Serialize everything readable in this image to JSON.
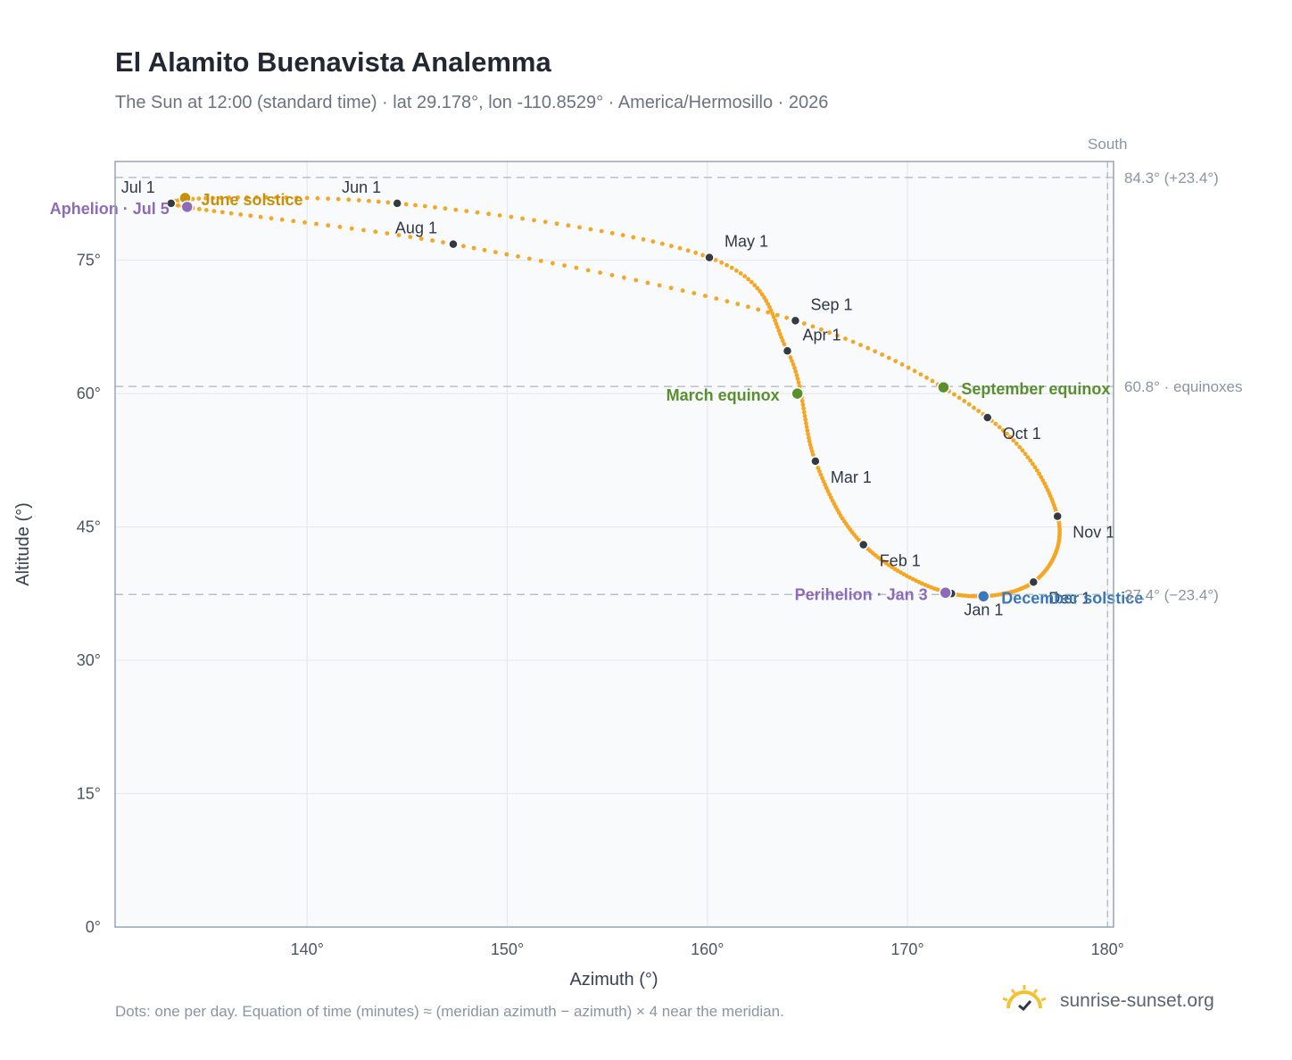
{
  "header": {
    "title": "El Alamito Buenavista Analemma",
    "subtitle": "The Sun at 12:00 (standard time) · lat 29.178°, lon -110.8529° · America/Hermosillo · 2026"
  },
  "footer": {
    "note": "Dots: one per day. Equation of time (minutes) ≈ (meridian azimuth − azimuth) × 4 near the meridian.",
    "brand": "sunrise-sunset.org",
    "brand_icon": "sun-icon"
  },
  "colors": {
    "curve": "#f5a623",
    "month_marker": "#333a44",
    "june_solstice": "#c8900a",
    "aphelion_perihelion": "#8e6bb8",
    "equinox": "#5a8f2e",
    "december_solstice": "#3a78b8",
    "reference_line": "#b8c0cb",
    "grid": "#e6eaef",
    "plot_background": "#f8fafc"
  },
  "chart_data": {
    "type": "scatter",
    "xlabel": "Azimuth (°)",
    "ylabel": "Altitude (°)",
    "xlim": [
      130.4,
      180.3
    ],
    "ylim": [
      0,
      86.1
    ],
    "x_ticks": [
      140,
      150,
      160,
      170,
      180
    ],
    "x_tick_labels": [
      "140°",
      "150°",
      "160°",
      "170°",
      "180°"
    ],
    "y_ticks": [
      0,
      15,
      30,
      45,
      60,
      75
    ],
    "y_tick_labels": [
      "0°",
      "15°",
      "30°",
      "45°",
      "60°",
      "75°"
    ],
    "grid": true,
    "south": {
      "label": "South",
      "azimuth": 180
    },
    "reference_lines": [
      {
        "altitude": 84.3,
        "label": "84.3° (+23.4°)"
      },
      {
        "altitude": 60.8,
        "label": "60.8° · equinoxes"
      },
      {
        "altitude": 37.4,
        "label": "37.4° (−23.4°)"
      }
    ],
    "month_markers": [
      {
        "label": "Jan 1",
        "az": 172.2,
        "alt": 37.5
      },
      {
        "label": "Feb 1",
        "az": 167.8,
        "alt": 43.0
      },
      {
        "label": "Mar 1",
        "az": 165.4,
        "alt": 52.4
      },
      {
        "label": "Apr 1",
        "az": 164.0,
        "alt": 64.8
      },
      {
        "label": "May 1",
        "az": 160.1,
        "alt": 75.3
      },
      {
        "label": "Jun 1",
        "az": 144.5,
        "alt": 81.4
      },
      {
        "label": "Jul 1",
        "az": 133.2,
        "alt": 81.4
      },
      {
        "label": "Aug 1",
        "az": 147.3,
        "alt": 76.8
      },
      {
        "label": "Sep 1",
        "az": 164.4,
        "alt": 68.2
      },
      {
        "label": "Oct 1",
        "az": 174.0,
        "alt": 57.3
      },
      {
        "label": "Nov 1",
        "az": 177.5,
        "alt": 46.2
      },
      {
        "label": "Dec 1",
        "az": 176.3,
        "alt": 38.8
      }
    ],
    "events": [
      {
        "label": "June solstice",
        "az": 133.9,
        "alt": 82.0,
        "kind": "june_solstice"
      },
      {
        "label": "Aphelion · Jul 5",
        "az": 134.0,
        "alt": 81.0,
        "kind": "aphelion_perihelion"
      },
      {
        "label": "March equinox",
        "az": 164.5,
        "alt": 60.0,
        "kind": "equinox"
      },
      {
        "label": "September equinox",
        "az": 171.8,
        "alt": 60.7,
        "kind": "equinox"
      },
      {
        "label": "Perihelion · Jan 3",
        "az": 171.9,
        "alt": 37.6,
        "kind": "aphelion_perihelion"
      },
      {
        "label": "December solstice",
        "az": 173.8,
        "alt": 37.2,
        "kind": "december_solstice"
      }
    ]
  }
}
